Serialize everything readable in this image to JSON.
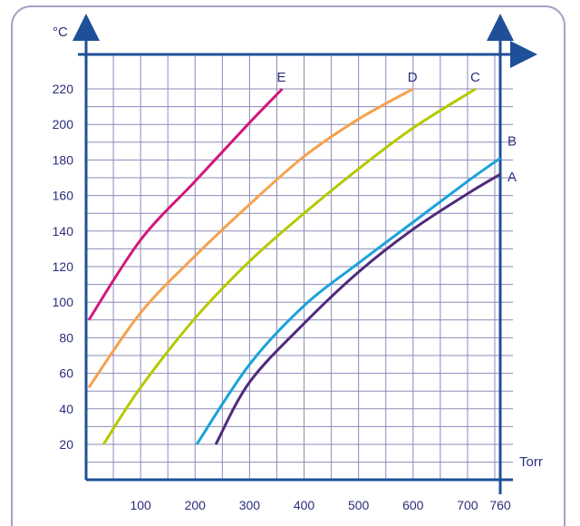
{
  "colors": {
    "frame": "#a79ec8",
    "axis": "#1f4f98",
    "grid": "#8e8ab8",
    "text": "#2a2e7a"
  },
  "chart_data": {
    "type": "line",
    "title": "",
    "xlabel": "Torr",
    "ylabel": "°C",
    "xlim": [
      0,
      760
    ],
    "ylim": [
      0,
      220
    ],
    "x_ticks": [
      100,
      200,
      300,
      400,
      500,
      600,
      700,
      760
    ],
    "y_ticks": [
      20,
      40,
      60,
      80,
      100,
      120,
      140,
      160,
      180,
      200,
      220
    ],
    "grid": true,
    "series": [
      {
        "name": "A",
        "color": "#4e2a7c",
        "points": [
          [
            238,
            20
          ],
          [
            300,
            55
          ],
          [
            400,
            88
          ],
          [
            500,
            117
          ],
          [
            600,
            141
          ],
          [
            700,
            161
          ],
          [
            760,
            172
          ]
        ]
      },
      {
        "name": "B",
        "color": "#1ba3d9",
        "points": [
          [
            203,
            20
          ],
          [
            300,
            65
          ],
          [
            400,
            98
          ],
          [
            500,
            122
          ],
          [
            600,
            145
          ],
          [
            700,
            168
          ],
          [
            760,
            181
          ]
        ]
      },
      {
        "name": "C",
        "color": "#b5c900",
        "points": [
          [
            32,
            20
          ],
          [
            100,
            52
          ],
          [
            200,
            91
          ],
          [
            300,
            123
          ],
          [
            400,
            150
          ],
          [
            500,
            175
          ],
          [
            600,
            198
          ],
          [
            715,
            220
          ]
        ]
      },
      {
        "name": "D",
        "color": "#f5a24f",
        "points": [
          [
            5,
            52
          ],
          [
            100,
            94
          ],
          [
            200,
            126
          ],
          [
            300,
            155
          ],
          [
            400,
            182
          ],
          [
            500,
            203
          ],
          [
            600,
            220
          ]
        ]
      },
      {
        "name": "E",
        "color": "#d3177a",
        "points": [
          [
            5,
            90
          ],
          [
            100,
            135
          ],
          [
            200,
            168
          ],
          [
            300,
            201
          ],
          [
            360,
            220
          ]
        ]
      }
    ]
  }
}
